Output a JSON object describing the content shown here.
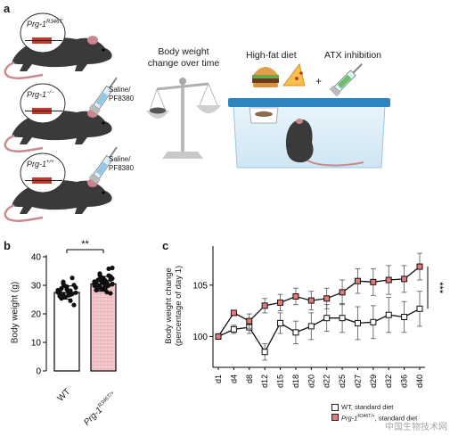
{
  "figure": {
    "panel_a": {
      "letter": "a",
      "mouse_labels": [
        {
          "text": "Prg-1",
          "sup": "R346T"
        },
        {
          "text": "Prg-1",
          "sup": "−/−"
        },
        {
          "text": "Prg-1",
          "sup": "+/+"
        }
      ],
      "injection_labels": [
        {
          "line1": "Saline/",
          "line2": "PF8380"
        },
        {
          "line1": "Saline/",
          "line2": "PF8380"
        }
      ],
      "body_weight_title": {
        "line1": "Body weight",
        "line2": "change over time"
      },
      "hfd_label": "High-fat diet",
      "plus_sign": "+",
      "atx_label": "ATX inhibition"
    },
    "panel_b": {
      "letter": "b",
      "significance": "**",
      "watermark": "中国生物技术网"
    },
    "panel_c": {
      "letter": "c",
      "significance": "***"
    }
  },
  "chart_data": [
    {
      "type": "bar",
      "panel": "b",
      "categories": [
        "WT",
        "Prg-1 R346T/+"
      ],
      "category_labels": [
        {
          "text": "WT",
          "sup": ""
        },
        {
          "text": "Prg-1",
          "sup": "R346T/+"
        }
      ],
      "values": [
        27.5,
        30.5
      ],
      "error": [
        2.3,
        2.6
      ],
      "ylabel": "Body weight (g)",
      "yticks": [
        0,
        10,
        20,
        30,
        40
      ],
      "ylim": [
        0,
        40
      ],
      "points": [
        [
          27.5,
          28.1,
          26.9,
          29.2,
          27.8,
          25.4,
          30.1,
          28.6,
          26.2,
          27.0,
          29.8,
          28.3,
          24.6,
          31.2,
          27.4,
          26.5,
          28.9,
          23.1,
          29.5,
          27.7,
          32.6,
          25.9,
          28.0,
          26.7,
          30.6
        ],
        [
          30.2,
          31.1,
          29.8,
          32.4,
          30.7,
          28.9,
          33.1,
          31.5,
          29.4,
          30.0,
          32.8,
          31.3,
          27.6,
          34.1,
          30.4,
          29.5,
          31.9,
          27.2,
          32.5,
          30.8,
          35.8,
          28.8,
          31.0,
          29.7,
          33.6,
          30.5,
          31.7,
          29.1,
          32.1,
          30.9,
          28.3,
          33.4,
          31.2,
          29.9,
          30.3,
          32.2,
          36.1,
          28.6
        ]
      ],
      "legend": "none",
      "grid": false
    },
    {
      "type": "line",
      "panel": "c",
      "categories": [
        "d1",
        "d4",
        "d8",
        "d12",
        "d15",
        "d18",
        "d20",
        "d22",
        "d25",
        "d27",
        "d29",
        "d32",
        "d36",
        "d40"
      ],
      "ylabel": "Body weight change (percentage of day 1)",
      "yticks": [
        100,
        105
      ],
      "ylim": [
        97.0,
        108.8
      ],
      "series": [
        {
          "name": "WT, standard diet",
          "marker": "open-square",
          "color": "#ffffff",
          "values": [
            100.0,
            100.7,
            100.9,
            98.5,
            101.3,
            100.4,
            101.0,
            101.8,
            101.8,
            101.3,
            101.4,
            102.1,
            101.9,
            102.7
          ],
          "error": [
            0.0,
            0.4,
            0.6,
            0.8,
            1.0,
            1.1,
            1.3,
            1.3,
            1.4,
            1.6,
            1.6,
            1.7,
            1.5,
            1.7
          ]
        },
        {
          "name": "Prg-1 R346T/+, standard diet",
          "marker": "filled-square",
          "color": "#e37b7b",
          "values": [
            100.0,
            102.3,
            101.5,
            103.0,
            103.3,
            103.9,
            103.5,
            103.7,
            104.3,
            105.4,
            105.3,
            105.5,
            105.6,
            106.8
          ],
          "error": [
            0.0,
            0.2,
            0.7,
            0.7,
            0.8,
            0.8,
            0.9,
            1.0,
            1.2,
            1.2,
            1.3,
            1.4,
            1.3,
            1.3
          ]
        }
      ],
      "legend_entries": [
        {
          "name": "WT, standard diet",
          "sup": ""
        },
        {
          "name": "Prg-1",
          "sup": "R346T/+",
          "rest": ", standard diet"
        }
      ],
      "legend": "bottom-right",
      "grid": false
    }
  ]
}
